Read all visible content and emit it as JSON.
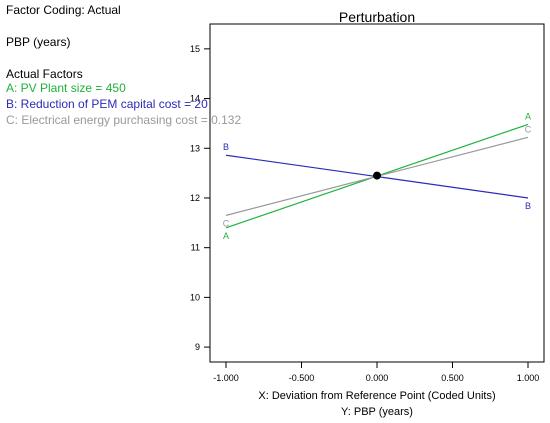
{
  "info_panel": {
    "coding_label": "Factor Coding: Actual",
    "response_label": "PBP (years)",
    "factors_heading": "Actual Factors",
    "factors": [
      {
        "text": "A: PV Plant size = 450",
        "color": "#1db33a"
      },
      {
        "text": "B: Reduction of PEM capital cost = 20",
        "color": "#2b2bb8"
      },
      {
        "text": "C: Electrical energy purchasing cost = 0.132",
        "color": "#999999"
      }
    ]
  },
  "chart_data": {
    "type": "line",
    "title": "Perturbation",
    "xlabel": "X: Deviation from Reference Point (Coded Units)",
    "ylabel": "Y: PBP (years)",
    "xlim": [
      -1.0,
      1.0
    ],
    "ylim": [
      8.7,
      15.5
    ],
    "x_ticks": [
      -1.0,
      -0.5,
      0.0,
      0.5,
      1.0
    ],
    "x_tick_labels": [
      "-1.000",
      "-0.500",
      "0.000",
      "0.500",
      "1.000"
    ],
    "y_ticks": [
      9,
      10,
      11,
      12,
      13,
      14,
      15
    ],
    "y_tick_labels": [
      "9",
      "10",
      "11",
      "12",
      "13",
      "14",
      "15"
    ],
    "grid": false,
    "reference_point": {
      "x": 0.0,
      "y": 12.45
    },
    "series": [
      {
        "name": "A",
        "color": "#1db33a",
        "x": [
          -1.0,
          1.0
        ],
        "y": [
          11.4,
          13.48
        ]
      },
      {
        "name": "B",
        "color": "#2b2bb8",
        "x": [
          -1.0,
          1.0
        ],
        "y": [
          12.86,
          12.0
        ]
      },
      {
        "name": "C",
        "color": "#999999",
        "x": [
          -1.0,
          1.0
        ],
        "y": [
          11.65,
          13.22
        ]
      }
    ]
  }
}
